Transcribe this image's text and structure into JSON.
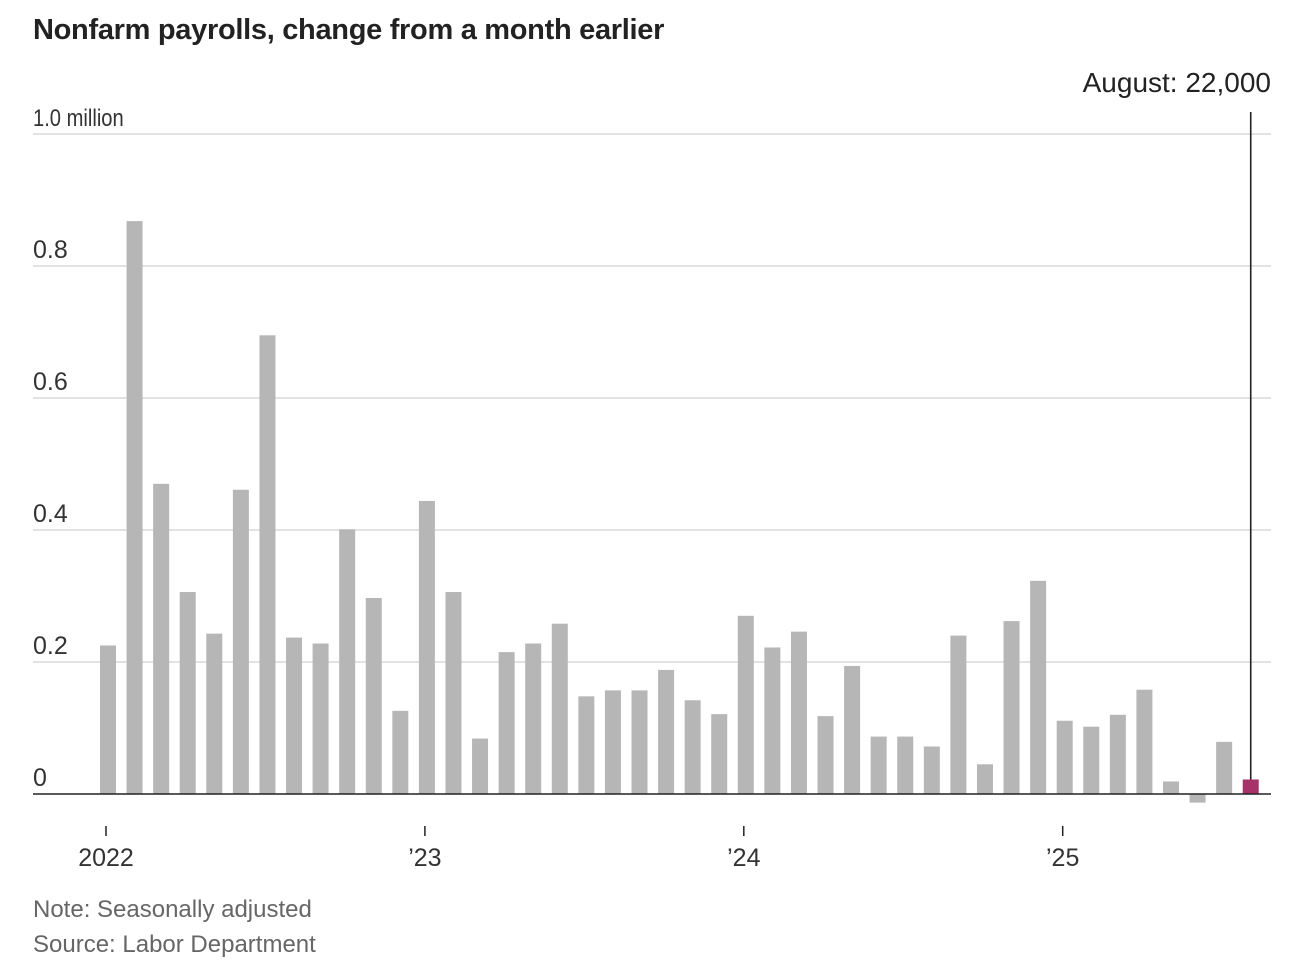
{
  "chart_data": {
    "type": "bar",
    "title": "Nonfarm payrolls, change from a month earlier",
    "y_unit_label": "1.0 million",
    "ylim": [
      0,
      1.0
    ],
    "yticks": [
      {
        "value": 0,
        "label": "0"
      },
      {
        "value": 0.2,
        "label": "0.2"
      },
      {
        "value": 0.4,
        "label": "0.4"
      },
      {
        "value": 0.6,
        "label": "0.6"
      },
      {
        "value": 0.8,
        "label": "0.8"
      },
      {
        "value": 1.0,
        "label": "1.0 million"
      }
    ],
    "xticks": [
      {
        "category": "2022-01",
        "label": "2022"
      },
      {
        "category": "2023-01",
        "label": "’23"
      },
      {
        "category": "2024-01",
        "label": "’24"
      },
      {
        "category": "2025-01",
        "label": "’25"
      }
    ],
    "categories": [
      "2022-01",
      "2022-02",
      "2022-03",
      "2022-04",
      "2022-05",
      "2022-06",
      "2022-07",
      "2022-08",
      "2022-09",
      "2022-10",
      "2022-11",
      "2022-12",
      "2023-01",
      "2023-02",
      "2023-03",
      "2023-04",
      "2023-05",
      "2023-06",
      "2023-07",
      "2023-08",
      "2023-09",
      "2023-10",
      "2023-11",
      "2023-12",
      "2024-01",
      "2024-02",
      "2024-03",
      "2024-04",
      "2024-05",
      "2024-06",
      "2024-07",
      "2024-08",
      "2024-09",
      "2024-10",
      "2024-11",
      "2024-12",
      "2025-01",
      "2025-02",
      "2025-03",
      "2025-04",
      "2025-05",
      "2025-06",
      "2025-07",
      "2025-08"
    ],
    "values": [
      0.225,
      0.868,
      0.47,
      0.306,
      0.243,
      0.461,
      0.695,
      0.237,
      0.228,
      0.401,
      0.297,
      0.126,
      0.444,
      0.306,
      0.084,
      0.215,
      0.228,
      0.258,
      0.148,
      0.157,
      0.157,
      0.188,
      0.142,
      0.121,
      0.27,
      0.222,
      0.246,
      0.118,
      0.194,
      0.087,
      0.087,
      0.072,
      0.24,
      0.045,
      0.262,
      0.323,
      0.111,
      0.102,
      0.12,
      0.158,
      0.019,
      -0.013,
      0.079,
      0.022
    ],
    "highlight": {
      "category": "2025-08",
      "label": "August: 22,000",
      "color": "#a7326a"
    },
    "bar_color": "#b6b6b6",
    "grid": true,
    "note": "Note: Seasonally adjusted",
    "source": "Source: Labor Department"
  }
}
